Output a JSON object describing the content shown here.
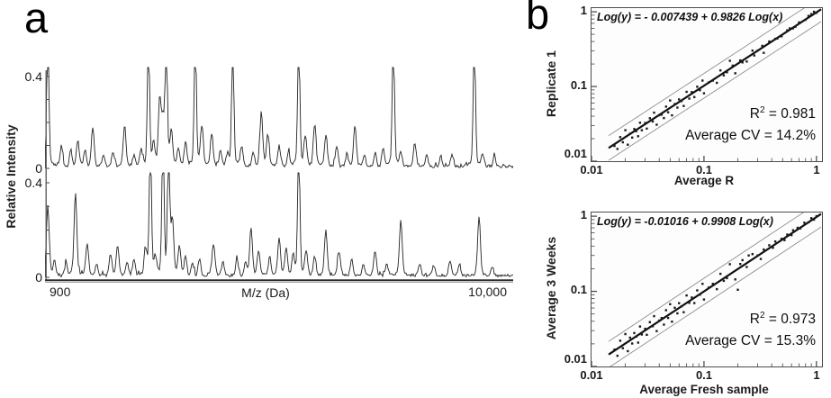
{
  "panels": {
    "a": "a",
    "b": "b"
  },
  "chart_data": [
    {
      "id": "mass-spectra",
      "type": "line",
      "title": "",
      "ylabel": "Relative Intensity",
      "xlabel": "M/z (Da)",
      "x_tick_labels": [
        "900",
        "10,000"
      ],
      "y_tick_labels_top": [
        "0.4",
        "0"
      ],
      "y_tick_labels_bottom": [
        "0.4",
        "0"
      ],
      "xlim_da": [
        900,
        10000
      ],
      "ylim": [
        0,
        0.4
      ],
      "grid": false,
      "traces": [
        {
          "name": "spectrum-replicate-top",
          "noise_seed": 11,
          "noise_amplitude": 0.013,
          "peaks": [
            [
              0.006,
              0.55
            ],
            [
              0.221,
              0.55
            ],
            [
              0.259,
              0.55
            ],
            [
              0.321,
              0.55
            ],
            [
              0.401,
              0.55
            ],
            [
              0.542,
              0.55
            ],
            [
              0.744,
              0.55
            ],
            [
              0.917,
              0.55
            ],
            [
              0.035,
              0.09
            ],
            [
              0.055,
              0.07
            ],
            [
              0.07,
              0.11
            ],
            [
              0.085,
              0.065
            ],
            [
              0.102,
              0.16
            ],
            [
              0.125,
              0.05
            ],
            [
              0.145,
              0.06
            ],
            [
              0.17,
              0.175
            ],
            [
              0.19,
              0.05
            ],
            [
              0.205,
              0.07
            ],
            [
              0.232,
              0.09
            ],
            [
              0.245,
              0.26
            ],
            [
              0.252,
              0.18
            ],
            [
              0.27,
              0.14
            ],
            [
              0.285,
              0.08
            ],
            [
              0.3,
              0.1
            ],
            [
              0.335,
              0.165
            ],
            [
              0.356,
              0.14
            ],
            [
              0.375,
              0.07
            ],
            [
              0.39,
              0.05
            ],
            [
              0.42,
              0.085
            ],
            [
              0.445,
              0.06
            ],
            [
              0.462,
              0.225
            ],
            [
              0.476,
              0.13
            ],
            [
              0.5,
              0.09
            ],
            [
              0.52,
              0.06
            ],
            [
              0.556,
              0.12
            ],
            [
              0.576,
              0.175
            ],
            [
              0.6,
              0.135
            ],
            [
              0.623,
              0.09
            ],
            [
              0.645,
              0.055
            ],
            [
              0.662,
              0.17
            ],
            [
              0.682,
              0.05
            ],
            [
              0.705,
              0.06
            ],
            [
              0.722,
              0.08
            ],
            [
              0.76,
              0.055
            ],
            [
              0.79,
              0.1
            ],
            [
              0.815,
              0.05
            ],
            [
              0.845,
              0.04
            ],
            [
              0.87,
              0.05
            ],
            [
              0.935,
              0.05
            ],
            [
              0.96,
              0.04
            ]
          ]
        },
        {
          "name": "spectrum-replicate-bottom",
          "noise_seed": 29,
          "noise_amplitude": 0.012,
          "peaks": [
            [
              0.225,
              0.55
            ],
            [
              0.252,
              0.55
            ],
            [
              0.264,
              0.55
            ],
            [
              0.542,
              0.55
            ],
            [
              0.006,
              0.28
            ],
            [
              0.02,
              0.06
            ],
            [
              0.045,
              0.05
            ],
            [
              0.065,
              0.33
            ],
            [
              0.09,
              0.13
            ],
            [
              0.11,
              0.05
            ],
            [
              0.14,
              0.09
            ],
            [
              0.155,
              0.12
            ],
            [
              0.175,
              0.06
            ],
            [
              0.19,
              0.07
            ],
            [
              0.215,
              0.1
            ],
            [
              0.235,
              0.065
            ],
            [
              0.272,
              0.22
            ],
            [
              0.287,
              0.12
            ],
            [
              0.3,
              0.08
            ],
            [
              0.315,
              0.05
            ],
            [
              0.33,
              0.07
            ],
            [
              0.36,
              0.13
            ],
            [
              0.38,
              0.06
            ],
            [
              0.41,
              0.07
            ],
            [
              0.428,
              0.05
            ],
            [
              0.44,
              0.19
            ],
            [
              0.456,
              0.1
            ],
            [
              0.48,
              0.08
            ],
            [
              0.5,
              0.155
            ],
            [
              0.515,
              0.11
            ],
            [
              0.53,
              0.07
            ],
            [
              0.558,
              0.1
            ],
            [
              0.576,
              0.08
            ],
            [
              0.6,
              0.18
            ],
            [
              0.628,
              0.1
            ],
            [
              0.655,
              0.07
            ],
            [
              0.68,
              0.05
            ],
            [
              0.705,
              0.1
            ],
            [
              0.73,
              0.05
            ],
            [
              0.76,
              0.22
            ],
            [
              0.8,
              0.05
            ],
            [
              0.83,
              0.045
            ],
            [
              0.865,
              0.06
            ],
            [
              0.885,
              0.05
            ],
            [
              0.927,
              0.24
            ],
            [
              0.955,
              0.04
            ]
          ]
        }
      ]
    },
    {
      "id": "replicate-vs-average",
      "type": "scatter",
      "equation": "Log(y) = - 0.007439 + 0.9826 Log(x)",
      "ylabel": "Replicate 1",
      "xlabel": "Average R",
      "x_tick_labels": [
        "0.01",
        "0.1",
        "1"
      ],
      "y_tick_labels": [
        "1",
        "0.1",
        "0.01"
      ],
      "xlim": [
        0.01,
        1.12
      ],
      "ylim": [
        0.01,
        1.12
      ],
      "log_x": true,
      "log_y": true,
      "grid": false,
      "fit": {
        "intercept": -0.007439,
        "slope": 0.9826,
        "band_decades": 0.165
      },
      "r2_value": 0.981,
      "cv_percent": 14.2,
      "stats": {
        "base": "R",
        "sup": "2",
        "eq": " = 0.981",
        "cv": "Average CV = 14.2%"
      },
      "points": [
        [
          0.016,
          0.016
        ],
        [
          0.017,
          0.0146
        ],
        [
          0.018,
          0.021
        ],
        [
          0.019,
          0.0179
        ],
        [
          0.02,
          0.026
        ],
        [
          0.021,
          0.0166
        ],
        [
          0.022,
          0.0233
        ],
        [
          0.023,
          0.0207
        ],
        [
          0.024,
          0.0269
        ],
        [
          0.025,
          0.0253
        ],
        [
          0.026,
          0.0216
        ],
        [
          0.027,
          0.0327
        ],
        [
          0.028,
          0.026
        ],
        [
          0.03,
          0.0324
        ],
        [
          0.031,
          0.0273
        ],
        [
          0.033,
          0.0376
        ],
        [
          0.035,
          0.034
        ],
        [
          0.036,
          0.0446
        ],
        [
          0.038,
          0.0308
        ],
        [
          0.04,
          0.0412
        ],
        [
          0.042,
          0.042
        ],
        [
          0.044,
          0.0378
        ],
        [
          0.046,
          0.0538
        ],
        [
          0.048,
          0.0451
        ],
        [
          0.05,
          0.065
        ],
        [
          0.052,
          0.0411
        ],
        [
          0.055,
          0.0583
        ],
        [
          0.058,
          0.0522
        ],
        [
          0.06,
          0.0672
        ],
        [
          0.063,
          0.0636
        ],
        [
          0.066,
          0.0548
        ],
        [
          0.07,
          0.0847
        ],
        [
          0.074,
          0.0688
        ],
        [
          0.078,
          0.0842
        ],
        [
          0.082,
          0.0722
        ],
        [
          0.087,
          0.0992
        ],
        [
          0.092,
          0.0892
        ],
        [
          0.097,
          0.12
        ],
        [
          0.1,
          0.081
        ],
        [
          0.11,
          0.113
        ],
        [
          0.12,
          0.12
        ],
        [
          0.13,
          0.112
        ],
        [
          0.14,
          0.164
        ],
        [
          0.15,
          0.141
        ],
        [
          0.16,
          0.155
        ],
        [
          0.17,
          0.221
        ],
        [
          0.18,
          0.19
        ],
        [
          0.19,
          0.15
        ],
        [
          0.21,
          0.223
        ],
        [
          0.22,
          0.21
        ],
        [
          0.24,
          0.216
        ],
        [
          0.27,
          0.302
        ],
        [
          0.28,
          0.26
        ],
        [
          0.3,
          0.303
        ],
        [
          0.33,
          0.35
        ],
        [
          0.34,
          0.282
        ],
        [
          0.38,
          0.4
        ],
        [
          0.43,
          0.435
        ],
        [
          0.45,
          0.44
        ],
        [
          0.49,
          0.47
        ],
        [
          0.55,
          0.565
        ],
        [
          0.58,
          0.6
        ],
        [
          0.62,
          0.6
        ],
        [
          0.65,
          0.63
        ],
        [
          0.7,
          0.72
        ],
        [
          0.8,
          0.78
        ],
        [
          0.85,
          0.88
        ],
        [
          0.9,
          0.93
        ],
        [
          0.95,
          1.0
        ],
        [
          1.0,
          0.97
        ]
      ]
    },
    {
      "id": "weeks-vs-fresh",
      "type": "scatter",
      "equation": "Log(y) = -0.01016 + 0.9908 Log(x)",
      "ylabel": "Average 3 Weeks",
      "xlabel": "Average Fresh sample",
      "x_tick_labels": [
        "0.01",
        "0.1",
        "1"
      ],
      "y_tick_labels": [
        "1",
        "0.1",
        "0.01"
      ],
      "xlim": [
        0.01,
        1.12
      ],
      "ylim": [
        0.01,
        1.12
      ],
      "log_x": true,
      "log_y": true,
      "grid": false,
      "fit": {
        "intercept": -0.01016,
        "slope": 0.9908,
        "band_decades": 0.175
      },
      "r2_value": 0.973,
      "cv_percent": 15.3,
      "stats": {
        "base": "R",
        "sup": "2",
        "eq": " = 0.973",
        "cv": "Average CV = 15.3%"
      },
      "points": [
        [
          0.016,
          0.0168
        ],
        [
          0.017,
          0.0139
        ],
        [
          0.018,
          0.022
        ],
        [
          0.019,
          0.0175
        ],
        [
          0.02,
          0.027
        ],
        [
          0.021,
          0.016
        ],
        [
          0.022,
          0.0242
        ],
        [
          0.023,
          0.0202
        ],
        [
          0.024,
          0.0278
        ],
        [
          0.025,
          0.025
        ],
        [
          0.026,
          0.0208
        ],
        [
          0.027,
          0.034
        ],
        [
          0.028,
          0.0266
        ],
        [
          0.03,
          0.0318
        ],
        [
          0.031,
          0.0264
        ],
        [
          0.033,
          0.0389
        ],
        [
          0.035,
          0.0343
        ],
        [
          0.036,
          0.0468
        ],
        [
          0.038,
          0.0296
        ],
        [
          0.04,
          0.0408
        ],
        [
          0.042,
          0.0441
        ],
        [
          0.044,
          0.0361
        ],
        [
          0.046,
          0.0561
        ],
        [
          0.048,
          0.0442
        ],
        [
          0.05,
          0.0675
        ],
        [
          0.052,
          0.0395
        ],
        [
          0.055,
          0.0605
        ],
        [
          0.058,
          0.051
        ],
        [
          0.06,
          0.0696
        ],
        [
          0.063,
          0.063
        ],
        [
          0.066,
          0.0528
        ],
        [
          0.07,
          0.0882
        ],
        [
          0.074,
          0.0703
        ],
        [
          0.078,
          0.0827
        ],
        [
          0.082,
          0.0697
        ],
        [
          0.087,
          0.103
        ],
        [
          0.092,
          0.0902
        ],
        [
          0.097,
          0.126
        ],
        [
          0.1,
          0.078
        ],
        [
          0.11,
          0.112
        ],
        [
          0.12,
          0.126
        ],
        [
          0.13,
          0.107
        ],
        [
          0.14,
          0.171
        ],
        [
          0.15,
          0.138
        ],
        [
          0.16,
          0.15
        ],
        [
          0.17,
          0.23
        ],
        [
          0.19,
          0.144
        ],
        [
          0.2,
          0.105
        ],
        [
          0.21,
          0.231
        ],
        [
          0.22,
          0.26
        ],
        [
          0.24,
          0.211
        ],
        [
          0.25,
          0.3
        ],
        [
          0.27,
          0.313
        ],
        [
          0.3,
          0.3
        ],
        [
          0.32,
          0.27
        ],
        [
          0.34,
          0.36
        ],
        [
          0.38,
          0.41
        ],
        [
          0.41,
          0.38
        ],
        [
          0.43,
          0.46
        ],
        [
          0.49,
          0.5
        ],
        [
          0.52,
          0.48
        ],
        [
          0.55,
          0.57
        ],
        [
          0.6,
          0.56
        ],
        [
          0.62,
          0.65
        ],
        [
          0.68,
          0.7
        ],
        [
          0.72,
          0.69
        ],
        [
          0.78,
          0.82
        ],
        [
          0.85,
          0.83
        ],
        [
          0.9,
          0.94
        ],
        [
          0.95,
          0.9
        ],
        [
          1.0,
          1.0
        ]
      ]
    }
  ]
}
